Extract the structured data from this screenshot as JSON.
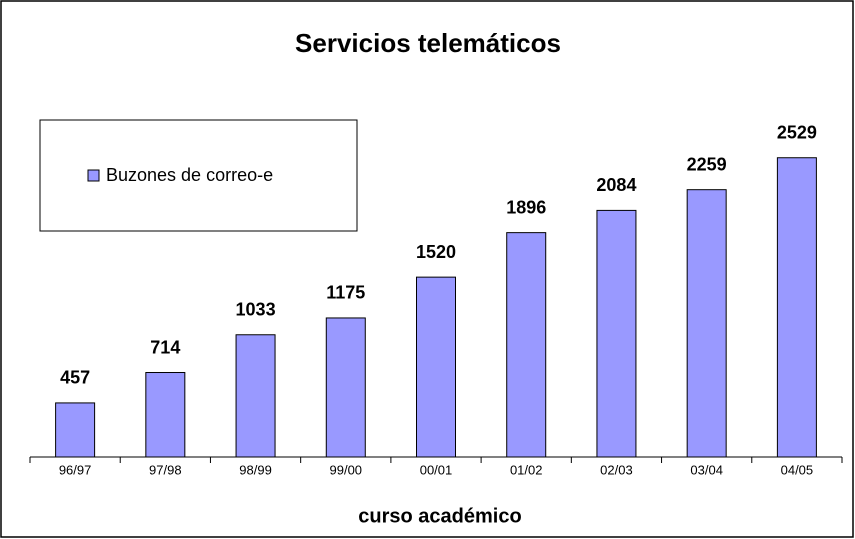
{
  "chart_data": {
    "type": "bar",
    "title": "Servicios telemáticos",
    "x_label": "curso académico",
    "categories": [
      "96/97",
      "97/98",
      "98/99",
      "99/00",
      "00/01",
      "01/02",
      "02/03",
      "03/04",
      "04/05"
    ],
    "series": [
      {
        "name": "Buzones de correo-e",
        "color": "#9999ff",
        "values": [
          457,
          714,
          1033,
          1175,
          1520,
          1896,
          2084,
          2259,
          2529
        ]
      }
    ],
    "ylim": [
      0,
      3000
    ],
    "legend": "left"
  }
}
